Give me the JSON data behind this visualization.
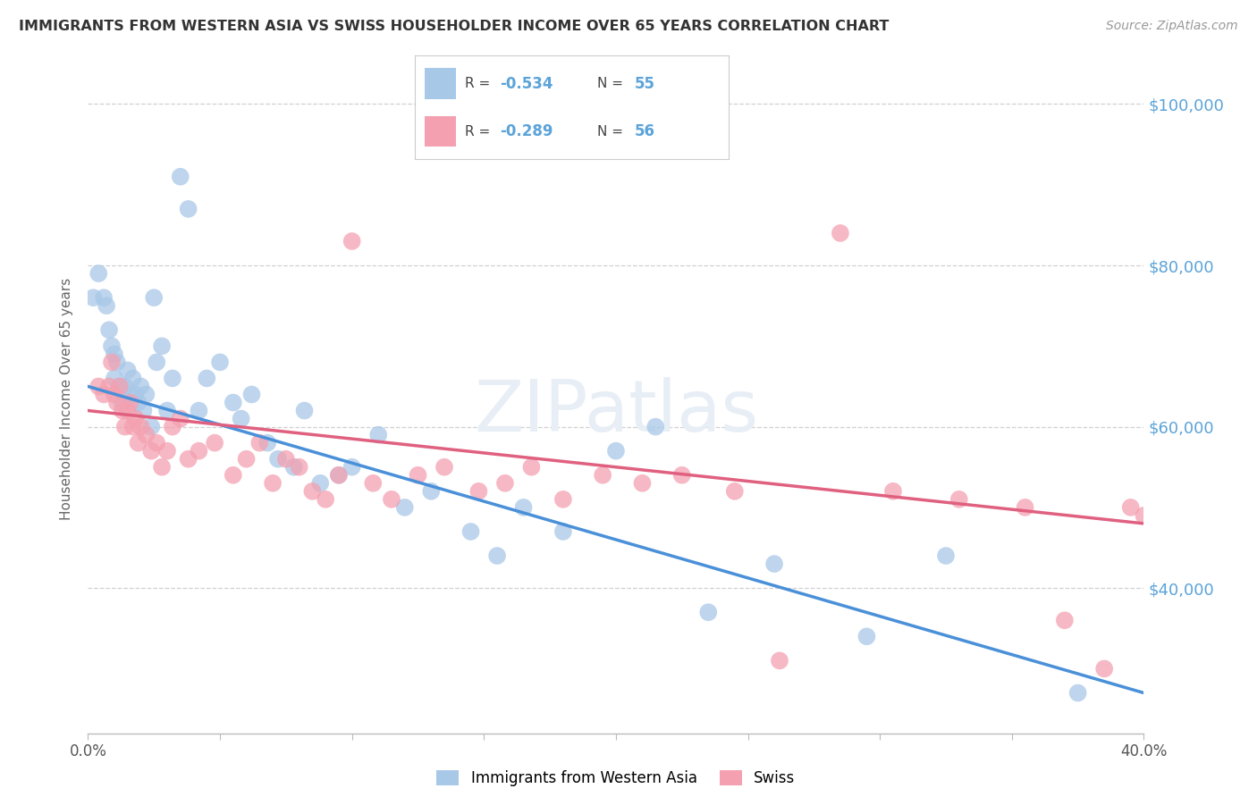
{
  "title": "IMMIGRANTS FROM WESTERN ASIA VS SWISS HOUSEHOLDER INCOME OVER 65 YEARS CORRELATION CHART",
  "source": "Source: ZipAtlas.com",
  "ylabel": "Householder Income Over 65 years",
  "xlim": [
    0.0,
    0.4
  ],
  "ylim": [
    22000,
    105000
  ],
  "yticks": [
    40000,
    60000,
    80000,
    100000
  ],
  "ytick_labels": [
    "$40,000",
    "$60,000",
    "$80,000",
    "$100,000"
  ],
  "xticks": [
    0.0,
    0.05,
    0.1,
    0.15,
    0.2,
    0.25,
    0.3,
    0.35,
    0.4
  ],
  "background_color": "#ffffff",
  "grid_color": "#d0d0d0",
  "color_blue": "#a8c8e8",
  "color_pink": "#f4a0b0",
  "color_blue_line": "#4a90d9",
  "color_pink_line": "#e06080",
  "color_right_label": "#5ba3d9",
  "color_title": "#333333",
  "color_source": "#999999",
  "color_watermark": "#e8eef5",
  "blue_x": [
    0.002,
    0.004,
    0.006,
    0.007,
    0.008,
    0.009,
    0.01,
    0.01,
    0.011,
    0.012,
    0.013,
    0.014,
    0.015,
    0.016,
    0.017,
    0.018,
    0.019,
    0.02,
    0.021,
    0.022,
    0.024,
    0.025,
    0.026,
    0.028,
    0.03,
    0.032,
    0.035,
    0.038,
    0.042,
    0.045,
    0.05,
    0.055,
    0.058,
    0.062,
    0.068,
    0.072,
    0.078,
    0.082,
    0.088,
    0.095,
    0.1,
    0.11,
    0.12,
    0.13,
    0.145,
    0.155,
    0.165,
    0.18,
    0.2,
    0.215,
    0.235,
    0.26,
    0.295,
    0.325,
    0.375
  ],
  "blue_y": [
    76000,
    79000,
    76000,
    75000,
    72000,
    70000,
    69000,
    66000,
    68000,
    65000,
    63000,
    65000,
    67000,
    64000,
    66000,
    64000,
    63000,
    65000,
    62000,
    64000,
    60000,
    76000,
    68000,
    70000,
    62000,
    66000,
    91000,
    87000,
    62000,
    66000,
    68000,
    63000,
    61000,
    64000,
    58000,
    56000,
    55000,
    62000,
    53000,
    54000,
    55000,
    59000,
    50000,
    52000,
    47000,
    44000,
    50000,
    47000,
    57000,
    60000,
    37000,
    43000,
    34000,
    44000,
    27000
  ],
  "pink_x": [
    0.004,
    0.006,
    0.008,
    0.009,
    0.01,
    0.011,
    0.012,
    0.013,
    0.014,
    0.015,
    0.016,
    0.017,
    0.018,
    0.019,
    0.02,
    0.022,
    0.024,
    0.026,
    0.028,
    0.03,
    0.032,
    0.035,
    0.038,
    0.042,
    0.048,
    0.055,
    0.06,
    0.065,
    0.07,
    0.075,
    0.08,
    0.085,
    0.09,
    0.095,
    0.1,
    0.108,
    0.115,
    0.125,
    0.135,
    0.148,
    0.158,
    0.168,
    0.18,
    0.195,
    0.21,
    0.225,
    0.245,
    0.262,
    0.285,
    0.305,
    0.33,
    0.355,
    0.37,
    0.385,
    0.395,
    0.4
  ],
  "pink_y": [
    65000,
    64000,
    65000,
    68000,
    64000,
    63000,
    65000,
    62000,
    60000,
    62000,
    63000,
    60000,
    61000,
    58000,
    60000,
    59000,
    57000,
    58000,
    55000,
    57000,
    60000,
    61000,
    56000,
    57000,
    58000,
    54000,
    56000,
    58000,
    53000,
    56000,
    55000,
    52000,
    51000,
    54000,
    83000,
    53000,
    51000,
    54000,
    55000,
    52000,
    53000,
    55000,
    51000,
    54000,
    53000,
    54000,
    52000,
    31000,
    84000,
    52000,
    51000,
    50000,
    36000,
    30000,
    50000,
    49000
  ]
}
